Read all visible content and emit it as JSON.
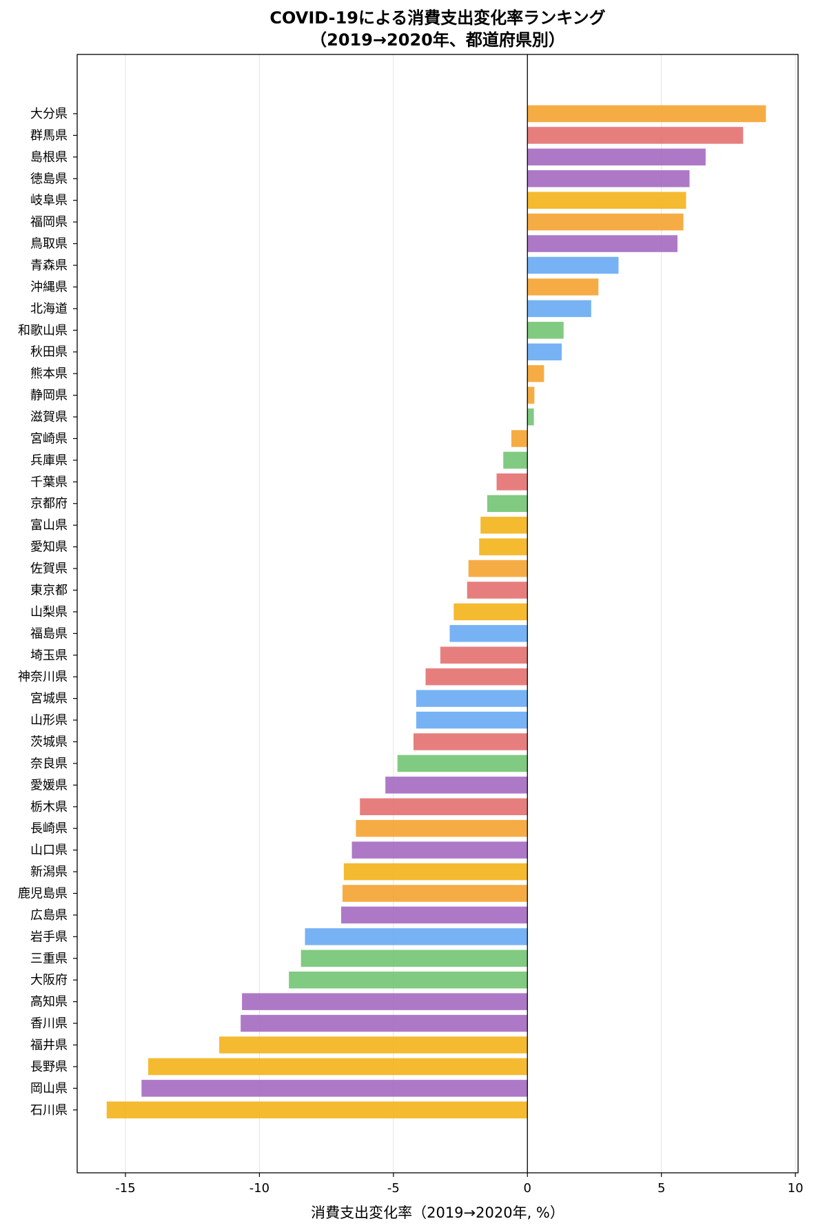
{
  "chart_data": {
    "type": "bar",
    "orientation": "horizontal",
    "title": "COVID-19による消費支出変化率ランキング",
    "subtitle": "（2019→2020年、都道府県別）",
    "xlabel": "消費支出変化率（2019→2020年, %）",
    "ylabel": "",
    "xlim": [
      -16.8,
      10.1
    ],
    "xticks": [
      -15,
      -10,
      -5,
      0,
      5,
      10
    ],
    "xtick_labels": [
      "-15",
      "-10",
      "-5",
      "0",
      "5",
      "10"
    ],
    "grid": "vertical",
    "legend": "none",
    "categories": [
      "大分県",
      "群馬県",
      "島根県",
      "徳島県",
      "岐阜県",
      "福岡県",
      "鳥取県",
      "青森県",
      "沖縄県",
      "北海道",
      "和歌山県",
      "秋田県",
      "熊本県",
      "静岡県",
      "滋賀県",
      "宮崎県",
      "兵庫県",
      "千葉県",
      "京都府",
      "富山県",
      "愛知県",
      "佐賀県",
      "東京都",
      "山梨県",
      "福島県",
      "埼玉県",
      "神奈川県",
      "宮城県",
      "山形県",
      "茨城県",
      "奈良県",
      "愛媛県",
      "栃木県",
      "長崎県",
      "山口県",
      "新潟県",
      "鹿児島県",
      "広島県",
      "岩手県",
      "三重県",
      "大阪府",
      "高知県",
      "香川県",
      "福井県",
      "長野県",
      "岡山県",
      "石川県"
    ],
    "values": [
      8.9,
      8.05,
      6.65,
      6.05,
      5.92,
      5.82,
      5.6,
      3.4,
      2.65,
      2.38,
      1.35,
      1.28,
      0.62,
      0.26,
      0.24,
      -0.6,
      -0.9,
      -1.15,
      -1.5,
      -1.75,
      -1.8,
      -2.2,
      -2.25,
      -2.75,
      -2.9,
      -3.25,
      -3.8,
      -4.15,
      -4.15,
      -4.25,
      -4.85,
      -5.3,
      -6.25,
      -6.4,
      -6.55,
      -6.85,
      -6.9,
      -6.95,
      -8.3,
      -8.45,
      -8.9,
      -10.65,
      -10.7,
      -11.5,
      -14.15,
      -14.4,
      -15.7
    ],
    "colors": [
      "#f5a02a",
      "#e46c6c",
      "#a266be",
      "#a266be",
      "#f3b013",
      "#f5a02a",
      "#a266be",
      "#64a7f3",
      "#f5a02a",
      "#64a7f3",
      "#6fc36f",
      "#64a7f3",
      "#f5a02a",
      "#f5a02a",
      "#6fc36f",
      "#f5a02a",
      "#6fc36f",
      "#e46c6c",
      "#6fc36f",
      "#f3b013",
      "#f3b013",
      "#f5a02a",
      "#e46c6c",
      "#f3b013",
      "#64a7f3",
      "#e46c6c",
      "#e46c6c",
      "#64a7f3",
      "#64a7f3",
      "#e46c6c",
      "#6fc36f",
      "#a266be",
      "#e46c6c",
      "#f5a02a",
      "#a266be",
      "#f3b013",
      "#f5a02a",
      "#a266be",
      "#64a7f3",
      "#6fc36f",
      "#6fc36f",
      "#a266be",
      "#a266be",
      "#f3b013",
      "#f3b013",
      "#a266be",
      "#f3b013"
    ]
  }
}
